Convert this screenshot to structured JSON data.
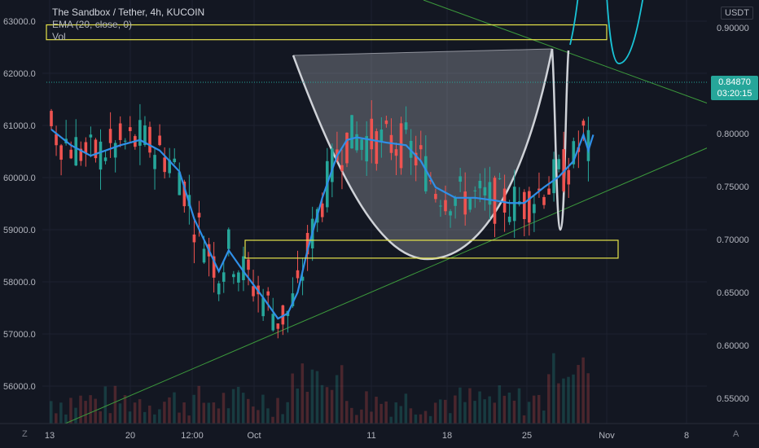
{
  "legend": {
    "title": "The Sandbox / Tether, 4h, KUCOIN",
    "ema": "EMA (20, close, 0)",
    "vol": "Vol"
  },
  "currency_badge": "USDT",
  "price_badge": {
    "price": "0.84870",
    "countdown": "03:20:15"
  },
  "corner_left": "Z",
  "corner_right": "A",
  "colors": {
    "background": "#131722",
    "ema": "#2f8fe8",
    "candle_up": "#26a69a",
    "candle_down": "#ef5350",
    "cup_outline": "#cfd2d8",
    "box": "#e6e44a",
    "trendline": "#3c9a3c",
    "price_badge": "#26a69a"
  },
  "chart_data": {
    "type": "candlestick",
    "title": "The Sandbox / Tether, 4h, KUCOIN",
    "left_axis": {
      "ticks": [
        "63000.0",
        "62000.0",
        "61000.0",
        "60000.0",
        "59000.0",
        "58000.0",
        "57000.0",
        "56000.0"
      ],
      "ylim": [
        55400,
        63300
      ]
    },
    "right_axis": {
      "unit": "USDT",
      "ticks": [
        "0.90000",
        "0.85000",
        "0.80000",
        "0.75000",
        "0.70000",
        "0.65000",
        "0.60000",
        "0.55000"
      ],
      "ylim": [
        0.527,
        0.921
      ]
    },
    "x_axis": {
      "ticks": [
        "13",
        "20",
        "12:00",
        "Oct",
        "11",
        "18",
        "25",
        "Nov",
        "8"
      ]
    },
    "last_price": 0.8487,
    "ema_series": [
      [
        0,
        60.9
      ],
      [
        4,
        60.6
      ],
      [
        8,
        60.4
      ],
      [
        14,
        60.6
      ],
      [
        18,
        60.7
      ],
      [
        22,
        60.5
      ],
      [
        26,
        60.1
      ],
      [
        29,
        59.2
      ],
      [
        32,
        58.6
      ],
      [
        34,
        58.2
      ],
      [
        36,
        58.6
      ],
      [
        39,
        58.2
      ],
      [
        43,
        57.7
      ],
      [
        46,
        57.3
      ],
      [
        48,
        57.4
      ],
      [
        50,
        57.8
      ],
      [
        52,
        58.6
      ],
      [
        55,
        59.6
      ],
      [
        58,
        60.4
      ],
      [
        60,
        60.7
      ],
      [
        62,
        60.75
      ],
      [
        65,
        60.7
      ],
      [
        68,
        60.65
      ],
      [
        72,
        60.6
      ],
      [
        75,
        60.3
      ],
      [
        78,
        59.8
      ],
      [
        82,
        59.6
      ],
      [
        86,
        59.6
      ],
      [
        90,
        59.55
      ],
      [
        93,
        59.5
      ],
      [
        96,
        59.5
      ],
      [
        100,
        59.8
      ],
      [
        103,
        60.0
      ],
      [
        106,
        60.3
      ],
      [
        108,
        60.8
      ],
      [
        109,
        60.5
      ],
      [
        110,
        60.8
      ]
    ],
    "annotations": [
      {
        "type": "resistance-box",
        "low": 0.8886,
        "high": 0.9027
      },
      {
        "type": "support-box",
        "low": 0.6807,
        "high": 0.6977
      },
      {
        "type": "cup-and-handle"
      },
      {
        "type": "ascending-trendline"
      },
      {
        "type": "descending-trendline"
      },
      {
        "type": "projection-path"
      }
    ]
  }
}
